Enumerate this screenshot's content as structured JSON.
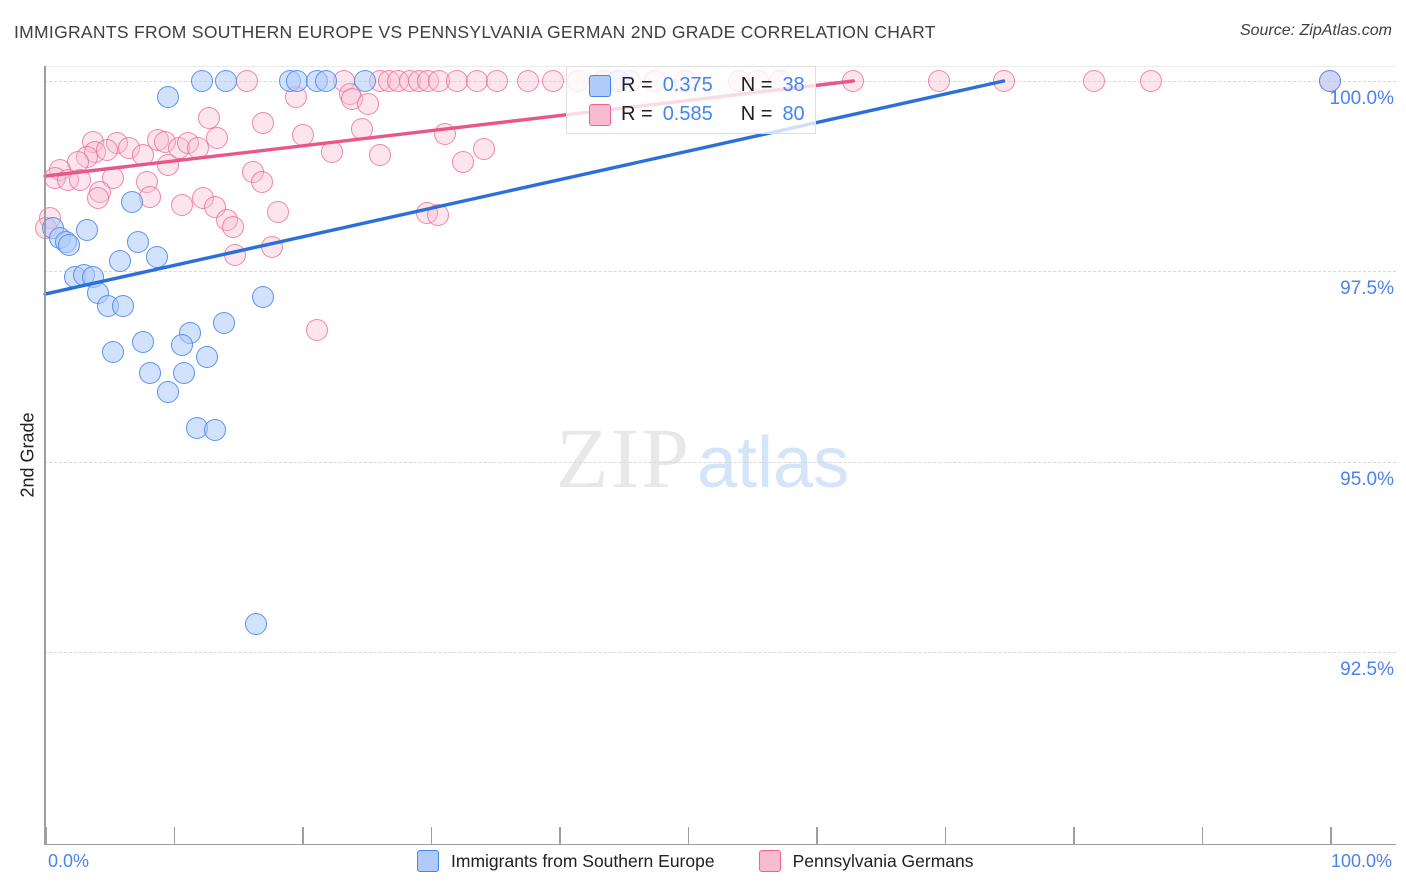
{
  "page": {
    "title": "IMMIGRANTS FROM SOUTHERN EUROPE VS PENNSYLVANIA GERMAN 2ND GRADE CORRELATION CHART",
    "source": "Source: ZipAtlas.com"
  },
  "watermark": {
    "zip": "ZIP",
    "atlas": "atlas"
  },
  "y_axis": {
    "title": "2nd Grade",
    "tick_labels": [
      "100.0%",
      "97.5%",
      "95.0%",
      "92.5%"
    ],
    "tick_values": [
      100,
      97.5,
      95,
      92.5
    ]
  },
  "x_axis": {
    "min_label": "0.0%",
    "max_label": "100.0%",
    "min": 0,
    "max": 100,
    "tick_count": 11
  },
  "legend_box": {
    "rows": [
      {
        "series": "Immigrants from Southern Europe",
        "r_prefix": "R = ",
        "r_value": "0.375",
        "n_prefix": "N = ",
        "n_value": "38"
      },
      {
        "series": "Pennsylvania Germans",
        "r_prefix": "R = ",
        "r_value": "0.585",
        "n_prefix": "N = ",
        "n_value": "80"
      }
    ]
  },
  "bottom_legend": [
    {
      "label": "Immigrants from Southern Europe"
    },
    {
      "label": "Pennsylvania Germans"
    }
  ],
  "chart_data": {
    "type": "scatter",
    "title": "IMMIGRANTS FROM SOUTHERN EUROPE VS PENNSYLVANIA GERMAN 2ND GRADE CORRELATION CHART",
    "ylabel": "2nd Grade",
    "x_range": [
      0,
      100
    ],
    "y_range_visible": [
      91.0,
      100.3
    ],
    "y_tick_values": [
      100,
      97.5,
      95,
      92.5
    ],
    "grid": "dashed-horizontal",
    "legend_position": "top-center-box and bottom",
    "series": [
      {
        "name": "Immigrants from Southern Europe",
        "color": "#4285f4",
        "R": 0.375,
        "N": 38,
        "points": [
          [
            12.2,
            100.0
          ],
          [
            14.1,
            100.0
          ],
          [
            19.1,
            100.0
          ],
          [
            19.6,
            100.0
          ],
          [
            21.2,
            100.0
          ],
          [
            21.9,
            100.0
          ],
          [
            24.9,
            100.0
          ],
          [
            44.6,
            100.0
          ],
          [
            100.0,
            100.0
          ],
          [
            9.6,
            99.79
          ],
          [
            6.8,
            98.41
          ],
          [
            0.6,
            98.07
          ],
          [
            1.2,
            97.94
          ],
          [
            1.6,
            97.88
          ],
          [
            1.9,
            97.84
          ],
          [
            3.3,
            98.04
          ],
          [
            7.2,
            97.88
          ],
          [
            5.8,
            97.63
          ],
          [
            8.7,
            97.69
          ],
          [
            2.3,
            97.42
          ],
          [
            3.0,
            97.45
          ],
          [
            3.7,
            97.42
          ],
          [
            4.1,
            97.21
          ],
          [
            4.9,
            97.04
          ],
          [
            6.1,
            97.04
          ],
          [
            17.0,
            97.16
          ],
          [
            13.9,
            96.82
          ],
          [
            11.3,
            96.69
          ],
          [
            10.7,
            96.53
          ],
          [
            7.6,
            96.57
          ],
          [
            5.3,
            96.44
          ],
          [
            12.6,
            96.37
          ],
          [
            8.2,
            96.16
          ],
          [
            10.8,
            96.16
          ],
          [
            9.6,
            95.91
          ],
          [
            11.8,
            95.44
          ],
          [
            13.2,
            95.41
          ],
          [
            16.4,
            92.86
          ]
        ]
      },
      {
        "name": "Pennsylvania Germans",
        "color": "#f06292",
        "R": 0.585,
        "N": 80,
        "points": [
          [
            15.7,
            100.0
          ],
          [
            23.3,
            100.0
          ],
          [
            26.1,
            100.0
          ],
          [
            26.8,
            100.0
          ],
          [
            27.5,
            100.0
          ],
          [
            28.4,
            100.0
          ],
          [
            29.1,
            100.0
          ],
          [
            29.8,
            100.0
          ],
          [
            30.7,
            100.0
          ],
          [
            32.1,
            100.0
          ],
          [
            33.6,
            100.0
          ],
          [
            35.2,
            100.0
          ],
          [
            37.6,
            100.0
          ],
          [
            39.5,
            100.0
          ],
          [
            41.5,
            100.0
          ],
          [
            43.5,
            100.0
          ],
          [
            45.5,
            100.0
          ],
          [
            47.5,
            100.0
          ],
          [
            49.8,
            100.0
          ],
          [
            54.0,
            100.0
          ],
          [
            55.5,
            100.0
          ],
          [
            57.2,
            100.0
          ],
          [
            62.9,
            100.0
          ],
          [
            69.6,
            100.0
          ],
          [
            74.6,
            100.0
          ],
          [
            81.6,
            100.0
          ],
          [
            86.1,
            100.0
          ],
          [
            100.0,
            100.0
          ],
          [
            19.5,
            99.79
          ],
          [
            23.7,
            99.83
          ],
          [
            23.9,
            99.76
          ],
          [
            25.1,
            99.7
          ],
          [
            24.7,
            99.37
          ],
          [
            20.1,
            99.29
          ],
          [
            22.3,
            99.07
          ],
          [
            26.1,
            99.03
          ],
          [
            31.1,
            99.3
          ],
          [
            32.5,
            98.94
          ],
          [
            34.2,
            99.11
          ],
          [
            17.0,
            99.45
          ],
          [
            12.8,
            99.51
          ],
          [
            13.4,
            99.25
          ],
          [
            8.8,
            99.22
          ],
          [
            9.3,
            99.2
          ],
          [
            3.7,
            99.2
          ],
          [
            5.6,
            99.19
          ],
          [
            3.9,
            99.07
          ],
          [
            3.3,
            99.0
          ],
          [
            2.6,
            98.94
          ],
          [
            4.8,
            99.09
          ],
          [
            6.5,
            99.12
          ],
          [
            7.6,
            99.03
          ],
          [
            10.4,
            99.12
          ],
          [
            11.1,
            99.19
          ],
          [
            11.9,
            99.12
          ],
          [
            9.6,
            98.9
          ],
          [
            1.2,
            98.83
          ],
          [
            0.8,
            98.73
          ],
          [
            1.8,
            98.7
          ],
          [
            2.7,
            98.7
          ],
          [
            5.3,
            98.73
          ],
          [
            4.3,
            98.54
          ],
          [
            7.9,
            98.67
          ],
          [
            8.2,
            98.48
          ],
          [
            16.2,
            98.8
          ],
          [
            16.9,
            98.67
          ],
          [
            10.7,
            98.37
          ],
          [
            12.3,
            98.46
          ],
          [
            13.2,
            98.34
          ],
          [
            18.1,
            98.28
          ],
          [
            0.4,
            98.2
          ],
          [
            14.2,
            98.17
          ],
          [
            4.1,
            98.46
          ],
          [
            0.1,
            98.07
          ],
          [
            14.6,
            98.08
          ],
          [
            14.8,
            97.71
          ],
          [
            17.7,
            97.82
          ],
          [
            29.7,
            98.27
          ],
          [
            30.6,
            98.24
          ],
          [
            21.2,
            96.73
          ]
        ]
      }
    ],
    "trendlines": [
      {
        "series": "Immigrants from Southern Europe",
        "color": "#2b6fdb",
        "x1": 0,
        "y1": 97.2,
        "x2": 74.6,
        "y2": 100.0
      },
      {
        "series": "Pennsylvania Germans",
        "color": "#e8568a",
        "x1": 0,
        "y1": 98.75,
        "x2": 62.9,
        "y2": 100.0
      }
    ]
  }
}
